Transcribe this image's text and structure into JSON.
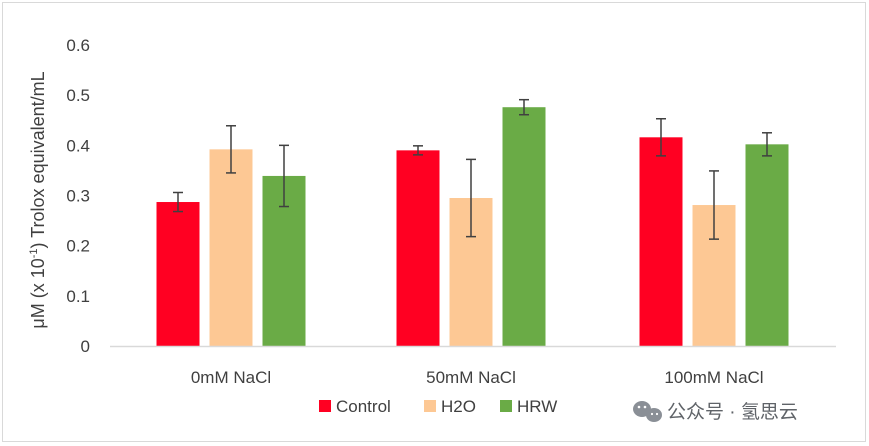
{
  "chart_data": {
    "type": "bar",
    "title": "",
    "ylabel_parts": [
      "μM (x 10",
      "-1",
      ") Trolox equivalent/mL"
    ],
    "xlabel": "",
    "ylim": [
      0,
      0.6
    ],
    "yticks": [
      "0",
      "0.1",
      "0.2",
      "0.3",
      "0.4",
      "0.5",
      "0.6"
    ],
    "ytick_values": [
      0,
      0.1,
      0.2,
      0.3,
      0.4,
      0.5,
      0.6
    ],
    "grid": false,
    "legend_position": "bottom-center",
    "categories": [
      "0mM NaCl",
      "50mM NaCl",
      "100mM NaCl"
    ],
    "series": [
      {
        "name": "Control",
        "color": "#ff0022",
        "values": [
          0.287,
          0.39,
          0.416
        ],
        "errors": [
          0.019,
          0.009,
          0.037
        ]
      },
      {
        "name": "H2O",
        "color": "#fdc894",
        "values": [
          0.392,
          0.295,
          0.281
        ],
        "errors": [
          0.047,
          0.077,
          0.068
        ]
      },
      {
        "name": "HRW",
        "color": "#6aab46",
        "values": [
          0.339,
          0.476,
          0.402
        ],
        "errors": [
          0.061,
          0.015,
          0.023
        ]
      }
    ]
  },
  "watermark": {
    "text": "公众号 · 氢思云",
    "icon": "wechat-icon"
  },
  "colors": {
    "axis": "#d9d9d9",
    "text": "#404040",
    "errorbar": "#404040",
    "frame": "#d9d9d9"
  }
}
